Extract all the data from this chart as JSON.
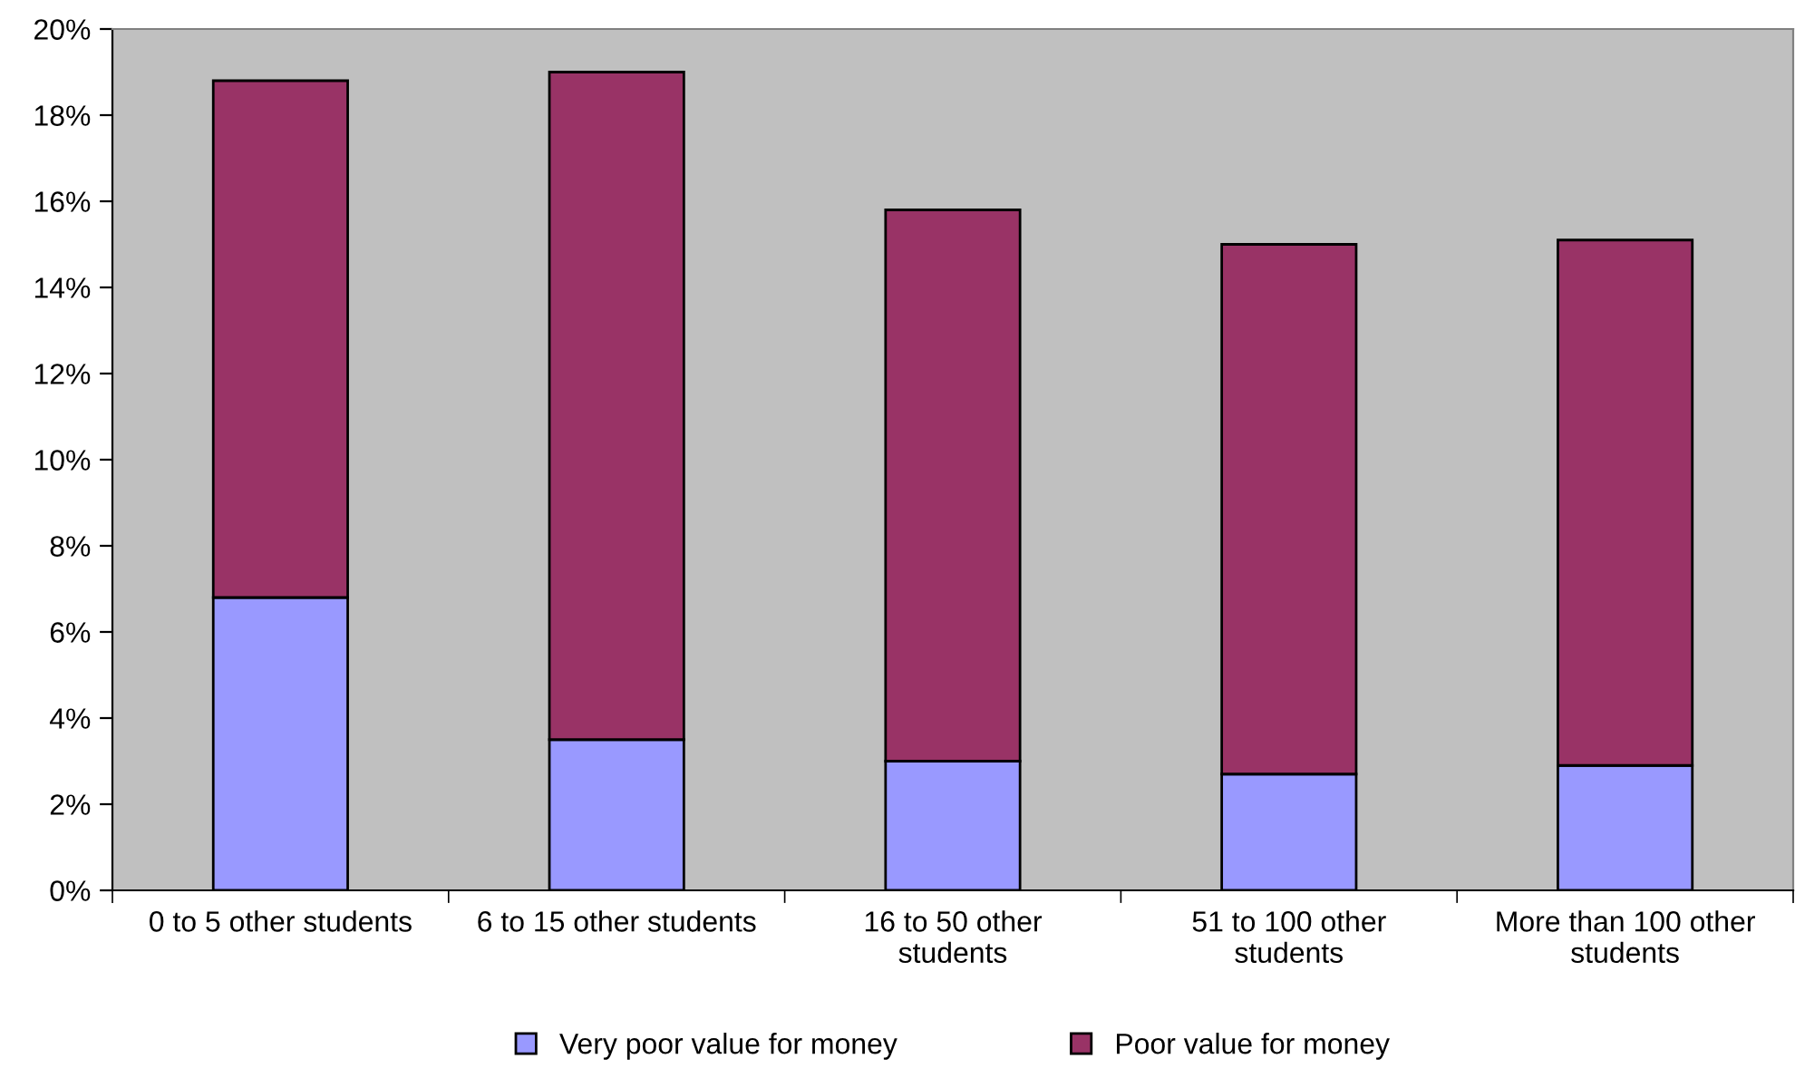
{
  "chart_data": {
    "type": "bar",
    "stacked": true,
    "categories": [
      "0 to 5 other students",
      "6 to 15 other students",
      "16 to 50 other\nstudents",
      "51 to 100 other\nstudents",
      "More than 100 other\nstudents"
    ],
    "series": [
      {
        "name": "Very poor value for money",
        "color": "#9999ff",
        "values": [
          6.8,
          3.5,
          3.0,
          2.7,
          2.9
        ]
      },
      {
        "name": "Poor value for money",
        "color": "#993366",
        "values": [
          12.0,
          15.5,
          12.8,
          12.3,
          12.2
        ]
      }
    ],
    "ylim": [
      0,
      20
    ],
    "yticks": [
      {
        "value": 0,
        "label": "0%"
      },
      {
        "value": 2,
        "label": "2%"
      },
      {
        "value": 4,
        "label": "4%"
      },
      {
        "value": 6,
        "label": "6%"
      },
      {
        "value": 8,
        "label": "8%"
      },
      {
        "value": 10,
        "label": "10%"
      },
      {
        "value": 12,
        "label": "12%"
      },
      {
        "value": 14,
        "label": "14%"
      },
      {
        "value": 16,
        "label": "16%"
      },
      {
        "value": 18,
        "label": "18%"
      },
      {
        "value": 20,
        "label": "20%"
      }
    ],
    "grid": false,
    "legend": "bottom"
  }
}
